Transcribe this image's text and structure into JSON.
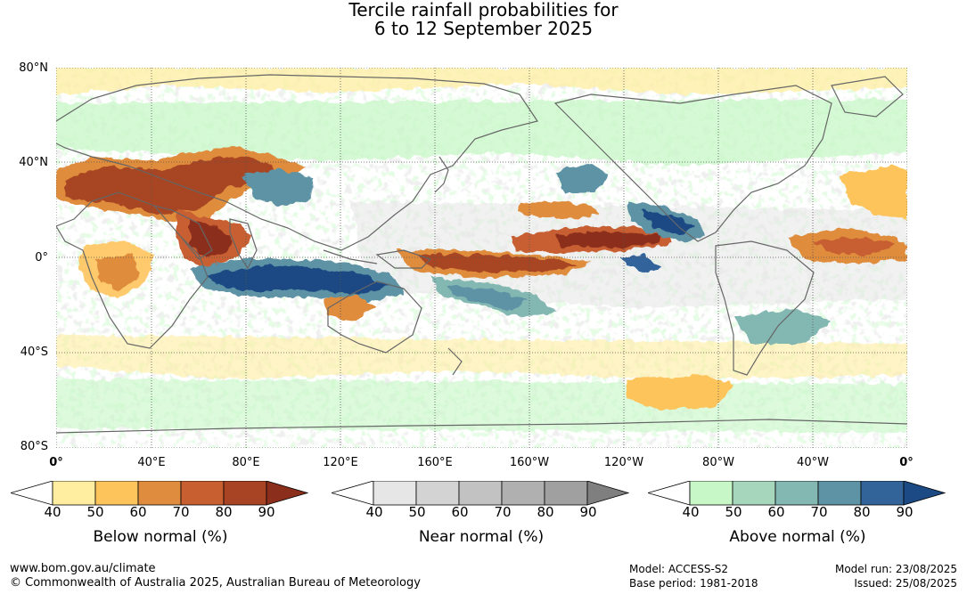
{
  "title": {
    "line1": "Tercile rainfall probabilities for",
    "line2": "6 to 12 September 2025"
  },
  "axes": {
    "lat_labels": [
      "80°N",
      "40°N",
      "0°",
      "40°S",
      "80°S"
    ],
    "lon_labels": [
      "0°",
      "40°E",
      "80°E",
      "120°E",
      "160°E",
      "160°W",
      "120°W",
      "80°W",
      "40°W",
      "0°"
    ]
  },
  "legends": [
    {
      "title": "Below normal (%)",
      "ticks": [
        "40",
        "50",
        "60",
        "70",
        "80",
        "90"
      ],
      "colors": [
        "#ffffff",
        "#ffeda0",
        "#fec45c",
        "#df8c3e",
        "#c75f30",
        "#a84424",
        "#8b2e1b"
      ]
    },
    {
      "title": "Near normal (%)",
      "ticks": [
        "40",
        "50",
        "60",
        "70",
        "80",
        "90"
      ],
      "colors": [
        "#ffffff",
        "#e6e6e6",
        "#d3d3d3",
        "#c2c2c2",
        "#b0b0b0",
        "#a0a0a0",
        "#7f7f7f"
      ]
    },
    {
      "title": "Above normal (%)",
      "ticks": [
        "40",
        "50",
        "60",
        "70",
        "80",
        "90"
      ],
      "colors": [
        "#ffffff",
        "#c7f7c7",
        "#a6d7bd",
        "#83b7b2",
        "#5d93a4",
        "#32649a",
        "#1c4a84"
      ]
    }
  ],
  "footer": {
    "url": "www.bom.gov.au/climate",
    "copyright": "© Commonwealth of Australia 2025, Australian Bureau of Meteorology",
    "model": "Model: ACCESS-S2",
    "base_period": "Base period: 1981-2018",
    "model_run": "Model run: 23/08/2025",
    "issued": "Issued: 25/08/2025"
  }
}
